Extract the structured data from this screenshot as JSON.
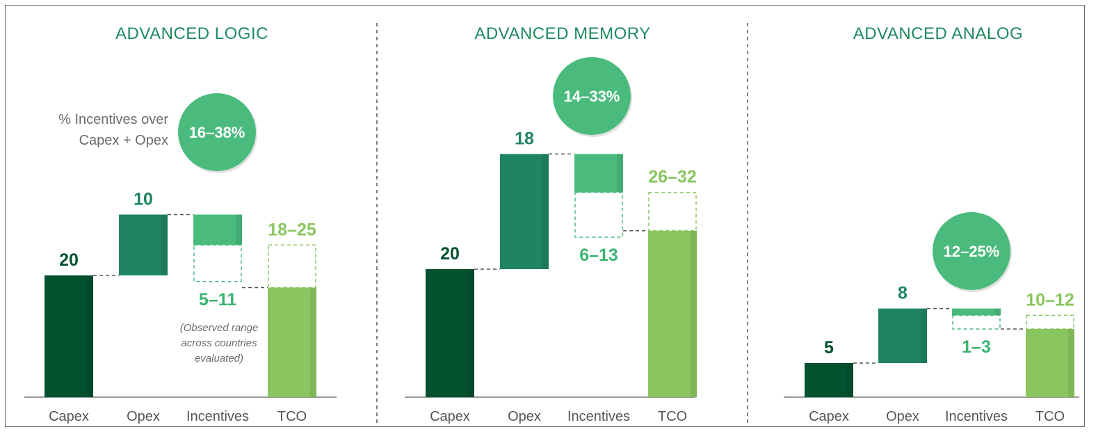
{
  "colors": {
    "capex": "#03512f",
    "opex": "#1e8462",
    "incentives": "#4abb7d",
    "tco": "#8ac660",
    "circle": "#4abb7d",
    "capex_label": "#03512f",
    "opex_label": "#1e8462",
    "incentives_label": "#3cb371",
    "tco_label": "#8ac660",
    "title": "#1e8a5e"
  },
  "note": {
    "line1": "% Incentives over",
    "line2": "Capex + Opex"
  },
  "footnote": {
    "line1": "(Observed range",
    "line2": "across countries",
    "line3": "evaluated)"
  },
  "chart_data": [
    {
      "type": "bar",
      "title": "ADVANCED LOGIC",
      "categories": [
        "Capex",
        "Opex",
        "Incentives",
        "TCO"
      ],
      "values": {
        "capex": 20,
        "opex": 10,
        "incentives": [
          5,
          11
        ],
        "tco": [
          18,
          25
        ]
      },
      "labels": {
        "capex": "20",
        "opex": "10",
        "incentives": "5–11",
        "tco": "18–25"
      },
      "circle": "16–38%"
    },
    {
      "type": "bar",
      "title": "ADVANCED MEMORY",
      "categories": [
        "Capex",
        "Opex",
        "Incentives",
        "TCO"
      ],
      "values": {
        "capex": 20,
        "opex": 18,
        "incentives": [
          6,
          13
        ],
        "tco": [
          26,
          32
        ]
      },
      "labels": {
        "capex": "20",
        "opex": "18",
        "incentives": "6–13",
        "tco": "26–32"
      },
      "circle": "14–33%"
    },
    {
      "type": "bar",
      "title": "ADVANCED ANALOG",
      "categories": [
        "Capex",
        "Opex",
        "Incentives",
        "TCO"
      ],
      "values": {
        "capex": 5,
        "opex": 8,
        "incentives": [
          1,
          3
        ],
        "tco": [
          10,
          12
        ]
      },
      "labels": {
        "capex": "5",
        "opex": "8",
        "incentives": "1–3",
        "tco": "10–12"
      },
      "circle": "12–25%"
    }
  ]
}
